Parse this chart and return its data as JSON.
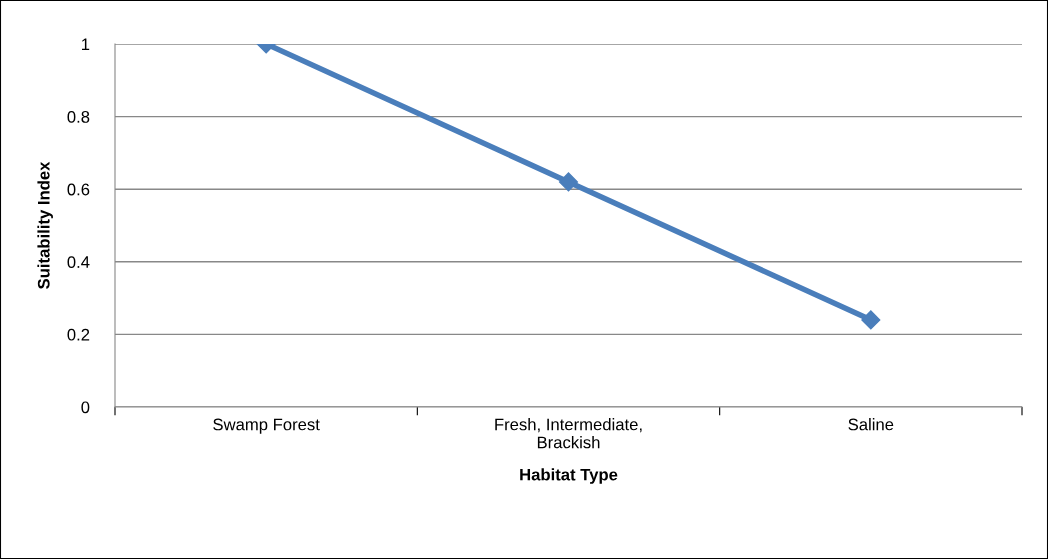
{
  "chart_data": {
    "type": "line",
    "xlabel": "Habitat Type",
    "ylabel": "Suitability Index",
    "categories": [
      "Swamp Forest",
      "Fresh, Intermediate,\nBrackish",
      "Saline"
    ],
    "series": [
      {
        "color": "#4a7ebb",
        "values": [
          1,
          0.62,
          0.24
        ]
      }
    ],
    "ylim": [
      0,
      1
    ],
    "yticks": [
      0,
      0.2,
      0.4,
      0.6,
      0.8,
      1
    ],
    "grid": "y",
    "marker": "diamond",
    "line_style": "solid",
    "legend": false
  }
}
